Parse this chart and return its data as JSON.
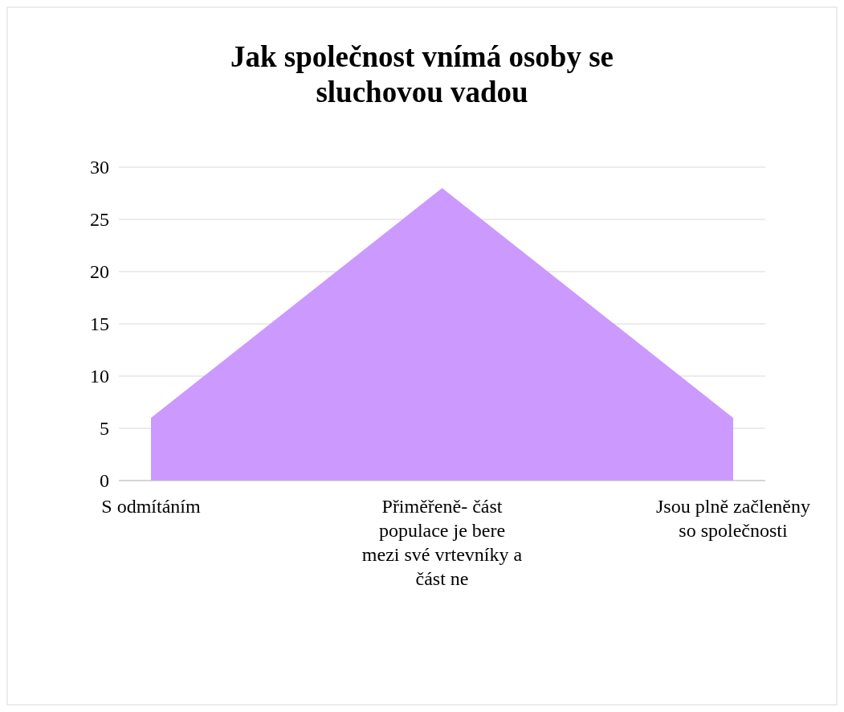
{
  "chart_data": {
    "type": "area",
    "title": "Jak společnost vnímá osoby se sluchovou vadou",
    "categories": [
      "S odmítáním",
      "Přiměřeně- část populace je bere mezi své vrtevníky a část ne",
      "Jsou plně začleněny so společnosti"
    ],
    "series": [
      {
        "color": "#cc99ff",
        "values": [
          6,
          28,
          6
        ]
      }
    ],
    "ylim": [
      0,
      30
    ],
    "yticks": [
      0,
      5,
      10,
      15,
      20,
      25,
      30
    ],
    "grid": "y"
  }
}
